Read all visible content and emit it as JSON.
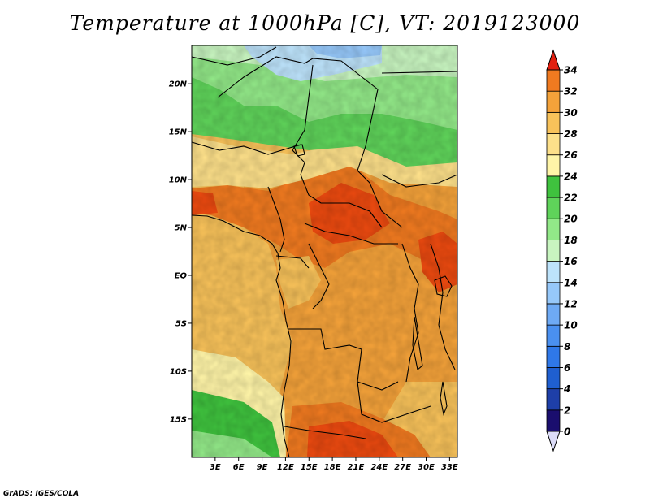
{
  "title": "Temperature at 1000hPa [C], VT: 2019123000",
  "credit": "GrADS: IGES/COLA",
  "map": {
    "lon_range": [
      0,
      34
    ],
    "lat_range": [
      -19,
      24
    ],
    "lat_ticks": [
      {
        "value": 20,
        "label": "20N"
      },
      {
        "value": 15,
        "label": "15N"
      },
      {
        "value": 10,
        "label": "10N"
      },
      {
        "value": 5,
        "label": "5N"
      },
      {
        "value": 0,
        "label": "EQ"
      },
      {
        "value": -5,
        "label": "5S"
      },
      {
        "value": -10,
        "label": "10S"
      },
      {
        "value": -15,
        "label": "15S"
      }
    ],
    "lon_ticks": [
      {
        "value": 3,
        "label": "3E"
      },
      {
        "value": 6,
        "label": "6E"
      },
      {
        "value": 9,
        "label": "9E"
      },
      {
        "value": 12,
        "label": "12E"
      },
      {
        "value": 15,
        "label": "15E"
      },
      {
        "value": 18,
        "label": "18E"
      },
      {
        "value": 21,
        "label": "21E"
      },
      {
        "value": 24,
        "label": "24E"
      },
      {
        "value": 27,
        "label": "27E"
      },
      {
        "value": 30,
        "label": "30E"
      },
      {
        "value": 33,
        "label": "33E"
      }
    ]
  },
  "colorbar": {
    "levels": [
      "0",
      "2",
      "4",
      "6",
      "8",
      "10",
      "12",
      "14",
      "16",
      "18",
      "20",
      "22",
      "24",
      "26",
      "28",
      "30",
      "32",
      "34"
    ],
    "colors": [
      "#1a0e6e",
      "#1e3fa8",
      "#1f5fd0",
      "#2f78e8",
      "#4a90f0",
      "#6eaaf5",
      "#96c8fa",
      "#bde3fb",
      "#c8f5c0",
      "#92e888",
      "#5fd35a",
      "#3fc23e",
      "#fff5a8",
      "#fde08a",
      "#f8c25a",
      "#f4a23a",
      "#f07a20",
      "#ec4a10",
      "#e22010"
    ],
    "under_color": "#dcdcf8"
  }
}
